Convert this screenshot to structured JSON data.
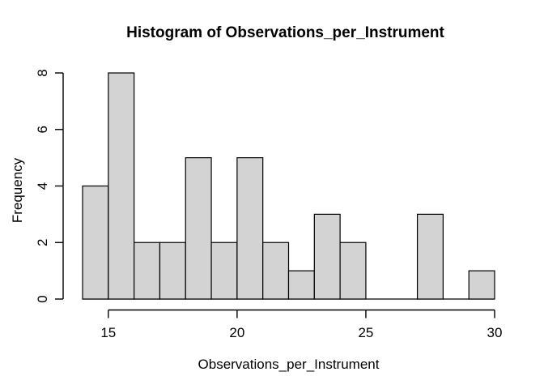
{
  "figure": {
    "background": "#ffffff"
  },
  "chart_data": {
    "type": "bar",
    "subtype": "histogram",
    "title": "Histogram of Observations_per_Instrument",
    "xlabel": "Observations_per_Instrument",
    "ylabel": "Frequency",
    "bin_edges": [
      14,
      15,
      16,
      17,
      18,
      19,
      20,
      21,
      22,
      23,
      24,
      25,
      26,
      27,
      28,
      29,
      30
    ],
    "frequencies": [
      4,
      8,
      2,
      2,
      5,
      2,
      5,
      2,
      1,
      3,
      2,
      0,
      0,
      3,
      0,
      1
    ],
    "x_ticks": [
      15,
      20,
      25,
      30
    ],
    "y_ticks": [
      0,
      2,
      4,
      6,
      8
    ],
    "xlim": [
      14,
      30
    ],
    "ylim": [
      0,
      8
    ],
    "grid": false,
    "legend": "none",
    "colors": {
      "bar_fill": "#d3d3d3",
      "bar_stroke": "#000000",
      "axis": "#000000",
      "text": "#000000"
    }
  }
}
